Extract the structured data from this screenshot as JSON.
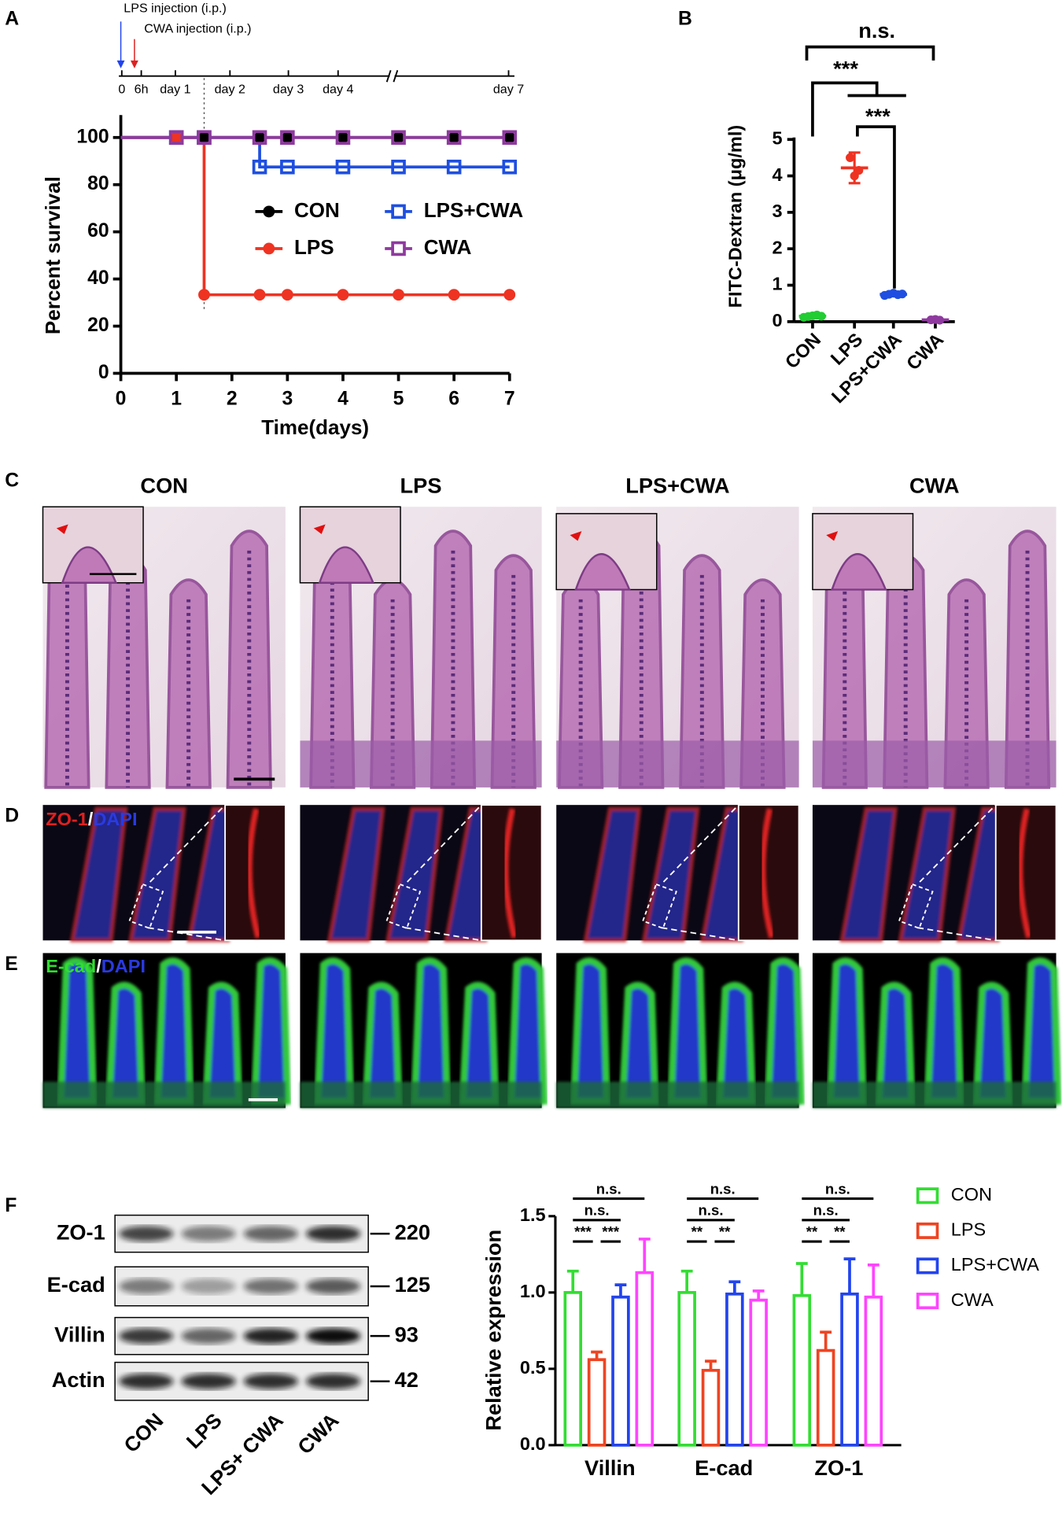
{
  "panel_labels": [
    "A",
    "B",
    "C",
    "D",
    "E",
    "F"
  ],
  "timeline": {
    "injections": [
      "LPS injection (i.p.)",
      "CWA injection (i.p.)"
    ],
    "ticks": [
      "0",
      "6h",
      "day 1",
      "day 2",
      "day 3",
      "day 4",
      "day 7"
    ]
  },
  "chart_data": [
    {
      "type": "line",
      "step": true,
      "xlabel": "Time(days)",
      "ylabel": "Percent survival",
      "x": [
        0,
        1,
        1.5,
        2.5,
        3,
        4,
        5,
        6,
        7
      ],
      "xlim": [
        0,
        7
      ],
      "ylim": [
        0,
        100
      ],
      "xticks": [
        0,
        1,
        2,
        3,
        4,
        5,
        6,
        7
      ],
      "yticks": [
        0,
        20,
        40,
        60,
        80,
        100
      ],
      "vline": 1.5,
      "series": [
        {
          "name": "CON",
          "color": "#000000",
          "marker": "circle",
          "values": [
            100,
            100,
            100,
            100,
            100,
            100,
            100,
            100,
            100
          ]
        },
        {
          "name": "LPS",
          "color": "#ee3322",
          "marker": "circle",
          "values": [
            100,
            100,
            33.3,
            33.3,
            33.3,
            33.3,
            33.3,
            33.3,
            33.3
          ]
        },
        {
          "name": "LPS+CWA",
          "color": "#1f4fe0",
          "marker": "square",
          "values": [
            100,
            100,
            100,
            87.5,
            87.5,
            87.5,
            87.5,
            87.5,
            87.5
          ]
        },
        {
          "name": "CWA",
          "color": "#8e3a9e",
          "marker": "square",
          "values": [
            100,
            100,
            100,
            100,
            100,
            100,
            100,
            100,
            100
          ]
        }
      ]
    },
    {
      "type": "dot",
      "ylabel": "FITC-Dextran (μg/ml)",
      "ylim": [
        0,
        5
      ],
      "yticks": [
        0,
        1,
        2,
        3,
        4,
        5
      ],
      "categories": [
        "CON",
        "LPS",
        "LPS+CWA",
        "CWA"
      ],
      "colors": [
        "#22cc33",
        "#ee3322",
        "#1f4fe0",
        "#8e3a9e"
      ],
      "points": [
        [
          0.12,
          0.14,
          0.16,
          0.18,
          0.15
        ],
        [
          4.5,
          4.0,
          4.15
        ],
        [
          0.72,
          0.75,
          0.78,
          0.74,
          0.76
        ],
        [
          0.05,
          0.06,
          0.04
        ]
      ],
      "means": [
        0.15,
        4.22,
        0.75,
        0.05
      ],
      "sds": [
        0.03,
        0.42,
        0.04,
        0.01
      ],
      "annotations": [
        "n.s.",
        "***",
        "***"
      ]
    },
    {
      "type": "bar",
      "ylabel": "Relative expression",
      "ylim": [
        0,
        1.5
      ],
      "yticks": [
        {
          "value": 0,
          "label": "0.0"
        },
        0.5,
        {
          "value": 1,
          "label": "1.0"
        },
        1.5
      ],
      "categories": [
        "Villin",
        "E-cad",
        "ZO-1"
      ],
      "series": [
        {
          "name": "CON",
          "color": "#33dd33",
          "values": [
            1.0,
            1.0,
            0.98
          ],
          "errors": [
            0.14,
            0.14,
            0.21
          ]
        },
        {
          "name": "LPS",
          "color": "#ee4422",
          "values": [
            0.56,
            0.49,
            0.62
          ],
          "errors": [
            0.05,
            0.06,
            0.12
          ]
        },
        {
          "name": "LPS+CWA",
          "color": "#2244ee",
          "values": [
            0.97,
            0.99,
            0.99
          ],
          "errors": [
            0.08,
            0.08,
            0.23
          ]
        },
        {
          "name": "CWA",
          "color": "#ff44ff",
          "values": [
            1.13,
            0.95,
            0.97
          ],
          "errors": [
            0.22,
            0.06,
            0.21
          ]
        }
      ],
      "annotations": [
        [
          "n.s.",
          "n.s.",
          "***",
          "***"
        ],
        [
          "n.s.",
          "n.s.",
          "**",
          "**"
        ],
        [
          "n.s.",
          "n.s.",
          "**",
          "**"
        ]
      ]
    }
  ],
  "micrographs": {
    "columns": [
      "CON",
      "LPS",
      "LPS+CWA",
      "CWA"
    ],
    "zo1_label": [
      "ZO-1",
      "/",
      "DAPI"
    ],
    "ecad_label": [
      "E-cad",
      "/",
      "DAPI"
    ]
  },
  "western_blot": {
    "proteins": [
      "ZO-1",
      "E-cad",
      "Villin",
      "Actin"
    ],
    "kda": [
      220,
      125,
      93,
      42
    ],
    "lanes": [
      "CON",
      "LPS",
      "LPS+ CWA",
      "CWA"
    ]
  }
}
